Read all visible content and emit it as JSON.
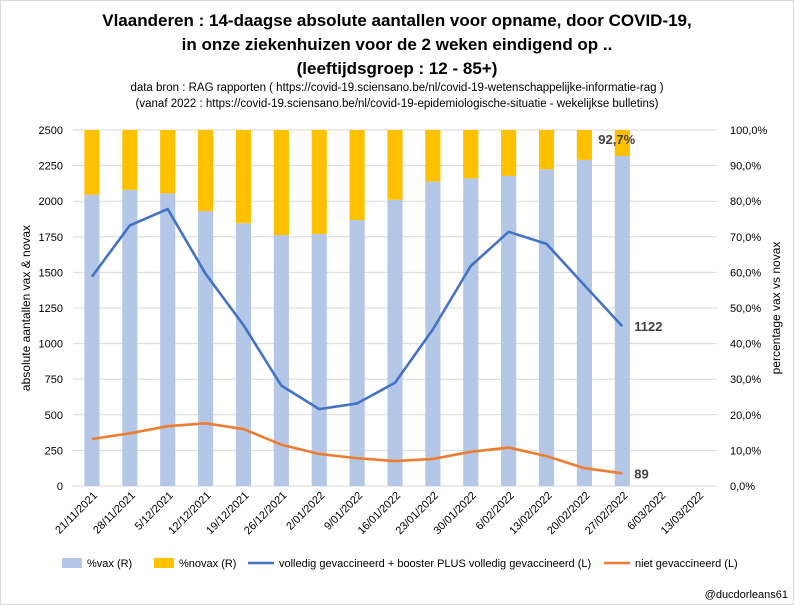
{
  "header": {
    "title_line1": "Vlaanderen :  14-daagse absolute aantallen voor opname, door COVID-19,",
    "title_line2": "in onze ziekenhuizen voor de 2 weken eindigend op ..",
    "title_line3": "(leeftijdsgroep : 12 - 85+)",
    "source_line1": "data bron :  RAG  rapporten ( https://covid-19.sciensano.be/nl/covid-19-wetenschappelijke-informatie-rag )",
    "source_line2": "(vanaf 2022 :  https://covid-19.sciensano.be/nl/covid-19-epidemiologische-situatie - wekelijkse bulletins)"
  },
  "credit": "@ducdorleans61",
  "colors": {
    "vax": "#b4c7e7",
    "novax": "#ffc000",
    "line_vax": "#4472c4",
    "line_novax": "#ed7d31",
    "grid": "#d9d9d9"
  },
  "chart_data": {
    "type": "bar+line",
    "categories": [
      "21/11/2021",
      "28/11/2021",
      "5/12/2021",
      "12/12/2021",
      "19/12/2021",
      "26/12/2021",
      "2/01/2022",
      "9/01/2022",
      "16/01/2022",
      "23/01/2022",
      "30/01/2022",
      "6/02/2022",
      "13/02/2022",
      "20/02/2022",
      "27/02/2022",
      "6/03/2022",
      "13/03/2022"
    ],
    "y_left": {
      "label": "absolute aantallen vax & novax",
      "range": [
        0,
        2500
      ],
      "ticks": [
        "0",
        "250",
        "500",
        "750",
        "1000",
        "1250",
        "1500",
        "1750",
        "2000",
        "2250",
        "2500"
      ]
    },
    "y_right": {
      "label": "percentage vax vs novax",
      "range": [
        0,
        100
      ],
      "ticks": [
        "0,0%",
        "10,0%",
        "20,0%",
        "30,0%",
        "40,0%",
        "50,0%",
        "60,0%",
        "70,0%",
        "80,0%",
        "90,0%",
        "100,0%"
      ]
    },
    "series": [
      {
        "name": "%vax (R)",
        "type": "stacked-bar",
        "axis": "right",
        "values": [
          81.8,
          83.2,
          82.2,
          77.2,
          73.8,
          70.5,
          70.8,
          74.7,
          80.4,
          85.5,
          86.4,
          87.1,
          89.0,
          91.6,
          92.7,
          null,
          null
        ]
      },
      {
        "name": "%novax (R)",
        "type": "stacked-bar",
        "axis": "right",
        "values": [
          18.2,
          16.8,
          17.8,
          22.8,
          26.2,
          29.5,
          29.2,
          25.3,
          19.6,
          14.5,
          13.6,
          12.9,
          11.0,
          8.4,
          7.3,
          null,
          null
        ]
      },
      {
        "name": "volledig gevaccineerd + booster PLUS volledig gevaccineerd (L)",
        "type": "line",
        "axis": "left",
        "values": [
          1470,
          1830,
          1945,
          1490,
          1130,
          705,
          540,
          580,
          725,
          1100,
          1545,
          1785,
          1700,
          1410,
          1122,
          null,
          null
        ]
      },
      {
        "name": "niet gevaccineerd (L)",
        "type": "line",
        "axis": "left",
        "values": [
          330,
          370,
          420,
          440,
          400,
          290,
          225,
          195,
          175,
          190,
          240,
          270,
          210,
          125,
          89,
          null,
          null
        ]
      }
    ],
    "annotations": [
      {
        "text": "92,7%",
        "series": "%vax (R)",
        "index": 14
      },
      {
        "text": "1122",
        "series": "volledig gevaccineerd + booster PLUS volledig gevaccineerd (L)",
        "index": 14
      },
      {
        "text": "89",
        "series": "niet gevaccineerd (L)",
        "index": 14
      }
    ]
  }
}
